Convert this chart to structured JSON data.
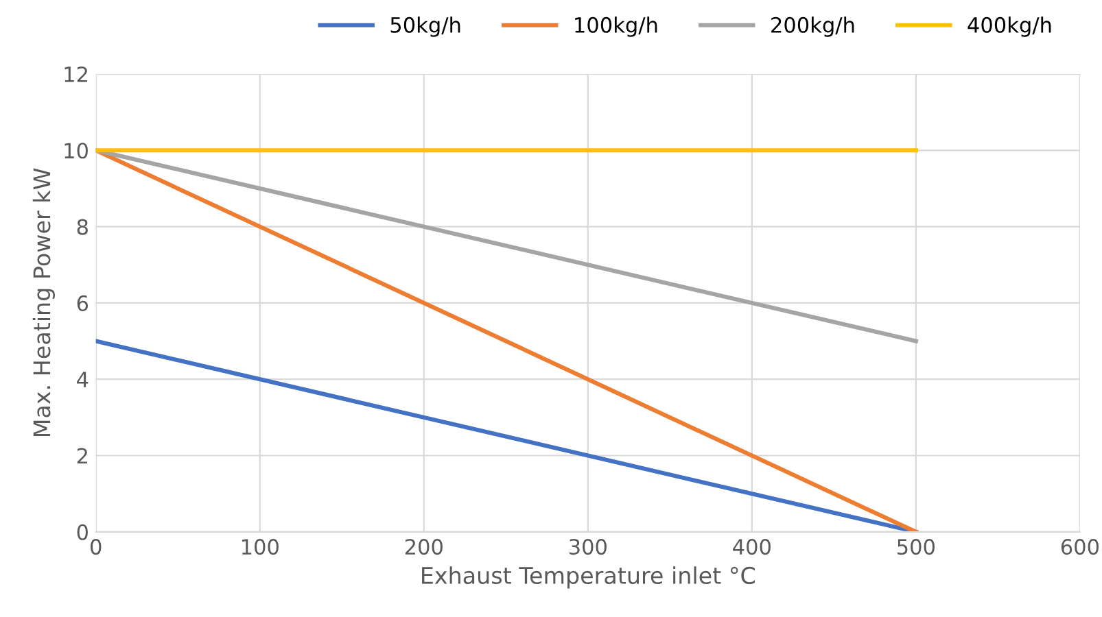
{
  "chart_data": {
    "type": "line",
    "xlabel": "Exhaust Temperature inlet °C",
    "ylabel": "Max. Heating Power kW",
    "x": [
      0,
      500
    ],
    "xlim": [
      0,
      600
    ],
    "xticks": [
      0,
      100,
      200,
      300,
      400,
      500,
      600
    ],
    "ylim": [
      0,
      12
    ],
    "yticks": [
      0,
      2,
      4,
      6,
      8,
      10,
      12
    ],
    "grid": true,
    "legend": "top",
    "marker": "none",
    "line_style": "solid",
    "series": [
      {
        "name": "50kg/h",
        "color": "#4472c4",
        "values": [
          5,
          0
        ]
      },
      {
        "name": "100kg/h",
        "color": "#ed7d31",
        "values": [
          10,
          0
        ]
      },
      {
        "name": "200kg/h",
        "color": "#a5a5a5",
        "values": [
          10,
          5
        ]
      },
      {
        "name": "400kg/h",
        "color": "#ffc000",
        "values": [
          10,
          10
        ]
      }
    ]
  }
}
